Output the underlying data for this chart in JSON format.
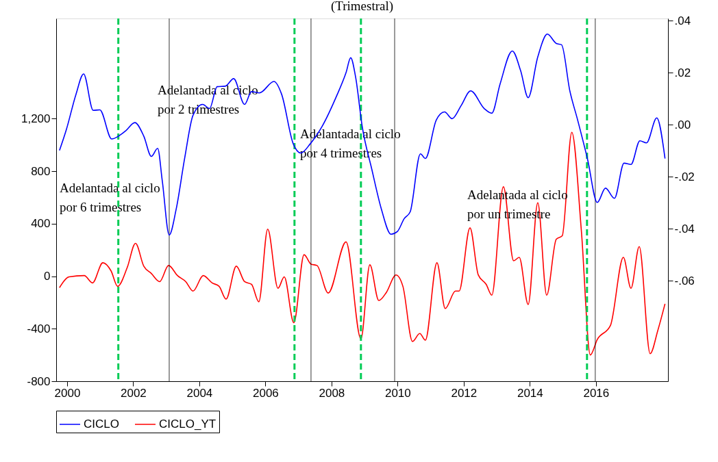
{
  "chart_data": {
    "type": "line",
    "title": "(Trimestral)",
    "xlim": [
      1999.67,
      2018.18
    ],
    "xticks": [
      2000,
      2002,
      2004,
      2006,
      2008,
      2010,
      2012,
      2014,
      2016
    ],
    "ylim": [
      -800,
      1964
    ],
    "yticks": [
      -800,
      -400,
      0,
      400,
      800,
      {
        "value": 1200,
        "label": "1,200"
      }
    ],
    "y2lim": [
      -0.0986,
      0.0408
    ],
    "y2ticks": [
      {
        "value": -0.06,
        "label": "-.06"
      },
      {
        "value": -0.04,
        "label": "-.04"
      },
      {
        "value": -0.02,
        "label": "-.02"
      },
      {
        "value": 0,
        "label": ".00"
      },
      {
        "value": 0.02,
        "label": ".02"
      },
      {
        "value": 0.04,
        "label": ".04"
      }
    ],
    "grid": false,
    "legend": "bottom",
    "line_style": "solid",
    "marker": "none",
    "series": [
      {
        "name": "CICLO",
        "color": "#0000ff",
        "axis": "y2",
        "x": [
          1999.77,
          1999.98,
          2000.27,
          2000.5,
          2000.79,
          2000.99,
          2001.35,
          2001.58,
          2001.78,
          2002.05,
          2002.32,
          2002.55,
          2002.74,
          2002.88,
          2003.09,
          2003.3,
          2003.56,
          2003.81,
          2004.1,
          2004.31,
          2004.54,
          2004.79,
          2005.04,
          2005.37,
          2005.58,
          2005.82,
          2006.26,
          2006.49,
          2006.84,
          2007.07,
          2007.36,
          2007.71,
          2008.15,
          2008.44,
          2008.58,
          2008.73,
          2008.93,
          2009.22,
          2009.51,
          2009.8,
          2009.99,
          2010.2,
          2010.38,
          2010.69,
          2010.84,
          2011.17,
          2011.42,
          2011.65,
          2011.92,
          2012.21,
          2012.62,
          2012.85,
          2013.1,
          2013.47,
          2013.72,
          2013.95,
          2014.24,
          2014.53,
          2014.8,
          2014.96,
          2015.21,
          2015.44,
          2015.75,
          2016.04,
          2016.29,
          2016.56,
          2016.85,
          2017.06,
          2017.33,
          2017.53,
          2017.84,
          2018.09
        ],
        "values": [
          -0.0099,
          -0.0018,
          0.0117,
          0.0195,
          0.0055,
          0.0057,
          -0.0055,
          -0.0042,
          -0.0023,
          0.0008,
          -0.0044,
          -0.0122,
          -0.0091,
          -0.0216,
          -0.0424,
          -0.0325,
          -0.0127,
          0.0036,
          0.0078,
          0.0062,
          0.0146,
          0.0148,
          0.0177,
          0.0078,
          0.0127,
          0.0122,
          0.0166,
          0.0117,
          -0.0073,
          -0.0109,
          -0.0073,
          -0.0008,
          0.0109,
          0.02,
          0.0257,
          0.0182,
          -0.0008,
          -0.0172,
          -0.0325,
          -0.0421,
          -0.0411,
          -0.0361,
          -0.0335,
          -0.0112,
          -0.013,
          0.0018,
          0.0049,
          0.0023,
          0.0073,
          0.013,
          0.0062,
          0.0044,
          0.0156,
          0.0283,
          0.0208,
          0.0104,
          0.026,
          0.0348,
          0.0312,
          0.0307,
          0.013,
          0.0021,
          -0.0135,
          -0.0299,
          -0.0244,
          -0.0283,
          -0.0148,
          -0.0153,
          -0.0062,
          -0.007,
          0.0026,
          -0.013
        ]
      },
      {
        "name": "CICLO_YT",
        "color": "#ff0000",
        "x": [
          1999.77,
          2000.06,
          2000.52,
          2000.77,
          2001.08,
          2001.33,
          2001.53,
          2001.82,
          2002.07,
          2002.32,
          2002.55,
          2002.8,
          2003.07,
          2003.34,
          2003.59,
          2003.81,
          2004.12,
          2004.39,
          2004.6,
          2004.81,
          2005.12,
          2005.37,
          2005.58,
          2005.8,
          2006.07,
          2006.38,
          2006.57,
          2006.86,
          2007.17,
          2007.38,
          2007.56,
          2007.9,
          2008.44,
          2008.89,
          2009.16,
          2009.43,
          2009.66,
          2009.95,
          2010.16,
          2010.45,
          2010.67,
          2010.84,
          2011.19,
          2011.44,
          2011.75,
          2011.86,
          2012.19,
          2012.44,
          2012.68,
          2012.85,
          2013.2,
          2013.51,
          2013.68,
          2013.95,
          2014.24,
          2014.51,
          2014.8,
          2014.98,
          2015.27,
          2015.56,
          2015.83,
          2016.04,
          2016.44,
          2016.83,
          2017.06,
          2017.31,
          2017.64,
          2017.87,
          2018.09
        ],
        "values": [
          -87,
          -5,
          5,
          -51,
          103,
          41,
          -77,
          67,
          251,
          77,
          21,
          -41,
          82,
          5,
          -41,
          -113,
          5,
          -51,
          -77,
          -174,
          77,
          -41,
          -62,
          -195,
          359,
          -92,
          -5,
          -354,
          164,
          92,
          82,
          -128,
          262,
          -477,
          87,
          -185,
          -123,
          10,
          -77,
          -497,
          -436,
          -487,
          103,
          -246,
          -113,
          -113,
          369,
          10,
          -62,
          -144,
          682,
          118,
          144,
          -215,
          559,
          -144,
          282,
          308,
          1097,
          344,
          -600,
          -482,
          -374,
          144,
          -92,
          226,
          -590,
          -415,
          -210
        ]
      }
    ],
    "ref_lines": [
      {
        "axis": "x",
        "value": 2001.55,
        "color": "#00cc55",
        "line_style": "dashed"
      },
      {
        "axis": "x",
        "value": 2006.88,
        "color": "#00cc55",
        "line_style": "dashed"
      },
      {
        "axis": "x",
        "value": 2008.89,
        "color": "#00cc55",
        "line_style": "dashed"
      },
      {
        "axis": "x",
        "value": 2015.73,
        "color": "#00cc55",
        "line_style": "dashed"
      },
      {
        "axis": "x",
        "value": 2003.09,
        "color": "#000000",
        "line_style": "solid"
      },
      {
        "axis": "x",
        "value": 2007.38,
        "color": "#000000",
        "line_style": "solid"
      },
      {
        "axis": "x",
        "value": 2009.91,
        "color": "#000000",
        "line_style": "solid"
      },
      {
        "axis": "x",
        "value": 2015.98,
        "color": "#000000",
        "line_style": "solid"
      }
    ],
    "annotations": [
      "Adelantada al ciclo\npor 6 trimestres",
      "Adelantada al ciclo\npor 2 trimestres",
      "Adelantada al ciclo\npor 4 trimestres",
      "Adelantada al ciclo\npor un trimestre"
    ]
  }
}
